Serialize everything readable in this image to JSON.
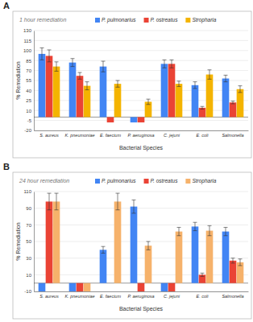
{
  "chart_data": [
    {
      "type": "bar",
      "title": "A",
      "subtitle": "1 hour remediation",
      "x_label": "Bacterial Species",
      "y_label": "% Remediation",
      "categories": [
        "S. aureus",
        "K. pneumoniae",
        "E. faecium",
        "P. aeruginosa",
        "C. jejuni",
        "E. coli",
        "Salmonella"
      ],
      "series": [
        {
          "name": "P. pulmonarius",
          "color": "#4285f4",
          "values": [
            95,
            82,
            76,
            -8,
            80,
            48,
            58
          ],
          "errors": [
            9,
            6,
            8,
            0,
            6,
            5,
            5
          ]
        },
        {
          "name": "P. ostreatus",
          "color": "#ea4335",
          "values": [
            92,
            62,
            -8,
            -8,
            80,
            14,
            22
          ],
          "errors": [
            9,
            5,
            0,
            0,
            6,
            2,
            2
          ]
        },
        {
          "name": "Stropharia",
          "color": "#f4b400",
          "values": [
            76,
            47,
            50,
            23,
            50,
            64,
            42
          ],
          "errors": [
            7,
            6,
            5,
            4,
            4,
            7,
            5
          ]
        }
      ],
      "ylim": [
        -20,
        130
      ],
      "yticks": [
        -20,
        -5,
        10,
        25,
        40,
        55,
        70,
        85,
        100,
        115,
        130
      ],
      "grid": true,
      "legend": "top"
    },
    {
      "type": "bar",
      "title": "B",
      "subtitle": "24 hour remediation",
      "x_label": "Bacterial Species",
      "y_label": "% Remediation",
      "categories": [
        "S. aureus",
        "K. pneumoniae",
        "E. faecium",
        "P. aeruginosa",
        "C. jejuni",
        "E. coli",
        "Salmonella"
      ],
      "series": [
        {
          "name": "P. pulmonarius",
          "color": "#4285f4",
          "values": [
            -10,
            -10,
            40,
            92,
            -10,
            68,
            62
          ],
          "errors": [
            0,
            0,
            4,
            8,
            0,
            5,
            5
          ]
        },
        {
          "name": "P. ostreatus",
          "color": "#ea4335",
          "values": [
            98,
            -10,
            0,
            -10,
            -10,
            10,
            27
          ],
          "errors": [
            10,
            0,
            0,
            0,
            0,
            2,
            3
          ]
        },
        {
          "name": "Stropharia",
          "color": "#f6b26b",
          "values": [
            98,
            -10,
            98,
            45,
            62,
            63,
            25
          ],
          "errors": [
            10,
            0,
            10,
            5,
            5,
            6,
            4
          ]
        }
      ],
      "ylim": [
        -10,
        110
      ],
      "yticks": [
        -10,
        10,
        30,
        50,
        70,
        90,
        110
      ],
      "grid": true,
      "legend": "top"
    }
  ]
}
